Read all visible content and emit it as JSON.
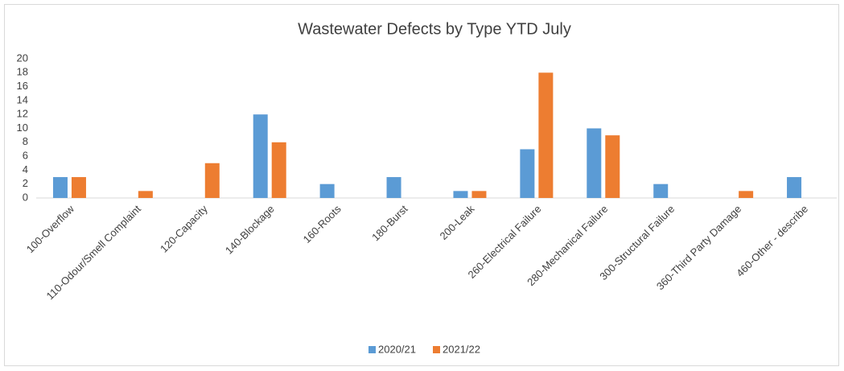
{
  "chart_data": {
    "type": "bar",
    "title": "Wastewater Defects by Type YTD July",
    "categories": [
      "100-Overflow",
      "110-Odour/Smell Complaint",
      "120-Capacity",
      "140-Blockage",
      "160-Roots",
      "180-Burst",
      "200-Leak",
      "260-Electrical Failure",
      "280-Mechanical Failure",
      "300-Structural Failure",
      "360-Third Party Damage",
      "460-Other - describe"
    ],
    "series": [
      {
        "name": "2020/21",
        "color": "#5b9bd5",
        "values": [
          3,
          0,
          0,
          12,
          2,
          3,
          1,
          7,
          10,
          2,
          0,
          3
        ]
      },
      {
        "name": "2021/22",
        "color": "#ed7d31",
        "values": [
          3,
          1,
          5,
          8,
          0,
          0,
          1,
          18,
          9,
          0,
          1,
          0
        ]
      }
    ],
    "ylim": [
      0,
      20
    ],
    "yticks": [
      0,
      2,
      4,
      6,
      8,
      10,
      12,
      14,
      16,
      18,
      20
    ],
    "grid": false,
    "legend": "bottom"
  }
}
